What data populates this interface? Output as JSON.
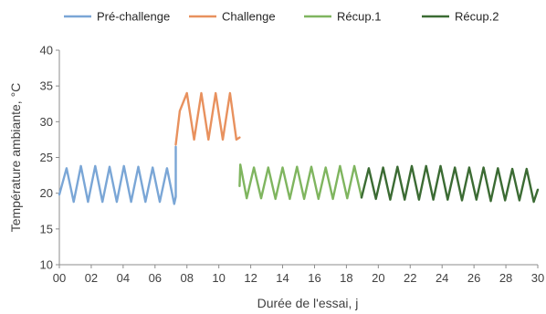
{
  "chart_data": {
    "type": "line",
    "xlabel": "Durée de l'essai, j",
    "ylabel": "Température ambiante, °C",
    "xlim": [
      0,
      30
    ],
    "ylim": [
      10,
      40
    ],
    "x_ticks": [
      0,
      2,
      4,
      6,
      8,
      10,
      12,
      14,
      16,
      18,
      20,
      22,
      24,
      26,
      28,
      30
    ],
    "x_tick_labels": [
      "00",
      "02",
      "04",
      "06",
      "08",
      "10",
      "12",
      "14",
      "16",
      "18",
      "20",
      "22",
      "24",
      "26",
      "28",
      "30"
    ],
    "y_ticks": [
      10,
      15,
      20,
      25,
      30,
      35,
      40
    ],
    "y_tick_labels": [
      "10",
      "15",
      "20",
      "25",
      "30",
      "35",
      "40"
    ],
    "grid": "none",
    "legend_position": "top",
    "series": [
      {
        "name": "Pré-challenge",
        "color": "#7aa6d6",
        "x": [
          0,
          0.45,
          0.9,
          1.35,
          1.8,
          2.25,
          2.7,
          3.15,
          3.6,
          4.05,
          4.5,
          4.95,
          5.4,
          5.85,
          6.3,
          6.75,
          7.2,
          7.3,
          7.3
        ],
        "y": [
          19.8,
          23.5,
          18.8,
          23.8,
          18.8,
          23.8,
          18.8,
          23.7,
          18.8,
          23.8,
          18.8,
          23.7,
          18.8,
          23.6,
          18.8,
          23.5,
          18.5,
          19.5,
          26.5
        ]
      },
      {
        "name": "Challenge",
        "color": "#e8915e",
        "x": [
          7.3,
          7.55,
          8.0,
          8.45,
          8.9,
          9.35,
          9.8,
          10.25,
          10.7,
          11.1,
          11.3
        ],
        "y": [
          26.8,
          31.5,
          34.0,
          27.5,
          34.0,
          27.5,
          34.0,
          27.5,
          34.0,
          27.5,
          27.8
        ]
      },
      {
        "name": "Récup.1",
        "color": "#7fb55f",
        "x": [
          11.3,
          11.35,
          11.75,
          12.2,
          12.65,
          13.1,
          13.55,
          14.0,
          14.45,
          14.9,
          15.35,
          15.8,
          16.25,
          16.7,
          17.15,
          17.6,
          18.05,
          18.5,
          18.95
        ],
        "y": [
          21.0,
          24.0,
          19.3,
          23.6,
          19.3,
          23.6,
          19.2,
          23.6,
          19.2,
          23.7,
          19.2,
          23.7,
          19.2,
          23.6,
          19.2,
          23.8,
          19.3,
          23.8,
          19.4
        ]
      },
      {
        "name": "Récup.2",
        "color": "#3b6b33",
        "x": [
          18.95,
          19.4,
          19.85,
          20.3,
          20.75,
          21.2,
          21.65,
          22.1,
          22.55,
          23.0,
          23.45,
          23.9,
          24.35,
          24.8,
          25.25,
          25.7,
          26.15,
          26.6,
          27.05,
          27.5,
          27.95,
          28.4,
          28.85,
          29.3,
          29.75,
          30.0
        ],
        "y": [
          19.4,
          23.5,
          19.2,
          23.6,
          19.1,
          23.7,
          19.1,
          23.8,
          19.1,
          23.8,
          19.1,
          23.8,
          19.1,
          23.6,
          19.0,
          23.6,
          19.1,
          23.6,
          18.9,
          23.5,
          19.0,
          23.4,
          19.0,
          23.4,
          18.8,
          20.5
        ]
      }
    ]
  }
}
